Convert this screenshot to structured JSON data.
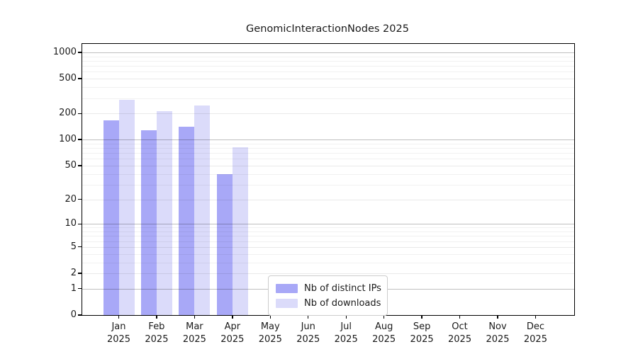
{
  "chart_data": {
    "type": "bar",
    "title": "GenomicInteractionNodes 2025",
    "categories": [
      "Jan",
      "Feb",
      "Mar",
      "Apr",
      "May",
      "Jun",
      "Jul",
      "Aug",
      "Sep",
      "Oct",
      "Nov",
      "Dec"
    ],
    "category_year": "2025",
    "series": [
      {
        "key": "distinct-ips",
        "name": "Nb of distinct IPs",
        "color": "#a8a8f7",
        "values": [
          165,
          129,
          141,
          40,
          0,
          0,
          0,
          0,
          0,
          0,
          0,
          0
        ]
      },
      {
        "key": "downloads",
        "name": "Nb of downloads",
        "color": "#dbdbfa",
        "values": [
          286,
          212,
          247,
          81,
          0,
          0,
          0,
          0,
          0,
          0,
          0,
          0
        ]
      }
    ],
    "y_axis": {
      "scale": "log10(value+1)",
      "tick_labels": [
        0,
        1,
        2,
        5,
        10,
        20,
        50,
        100,
        200,
        500,
        1000
      ]
    },
    "x_axis": {
      "label_format": "month over year"
    },
    "grid": true,
    "legend_position": "bottom-center-inside",
    "background_color": "#ffffff",
    "axis_color": "#000000"
  }
}
